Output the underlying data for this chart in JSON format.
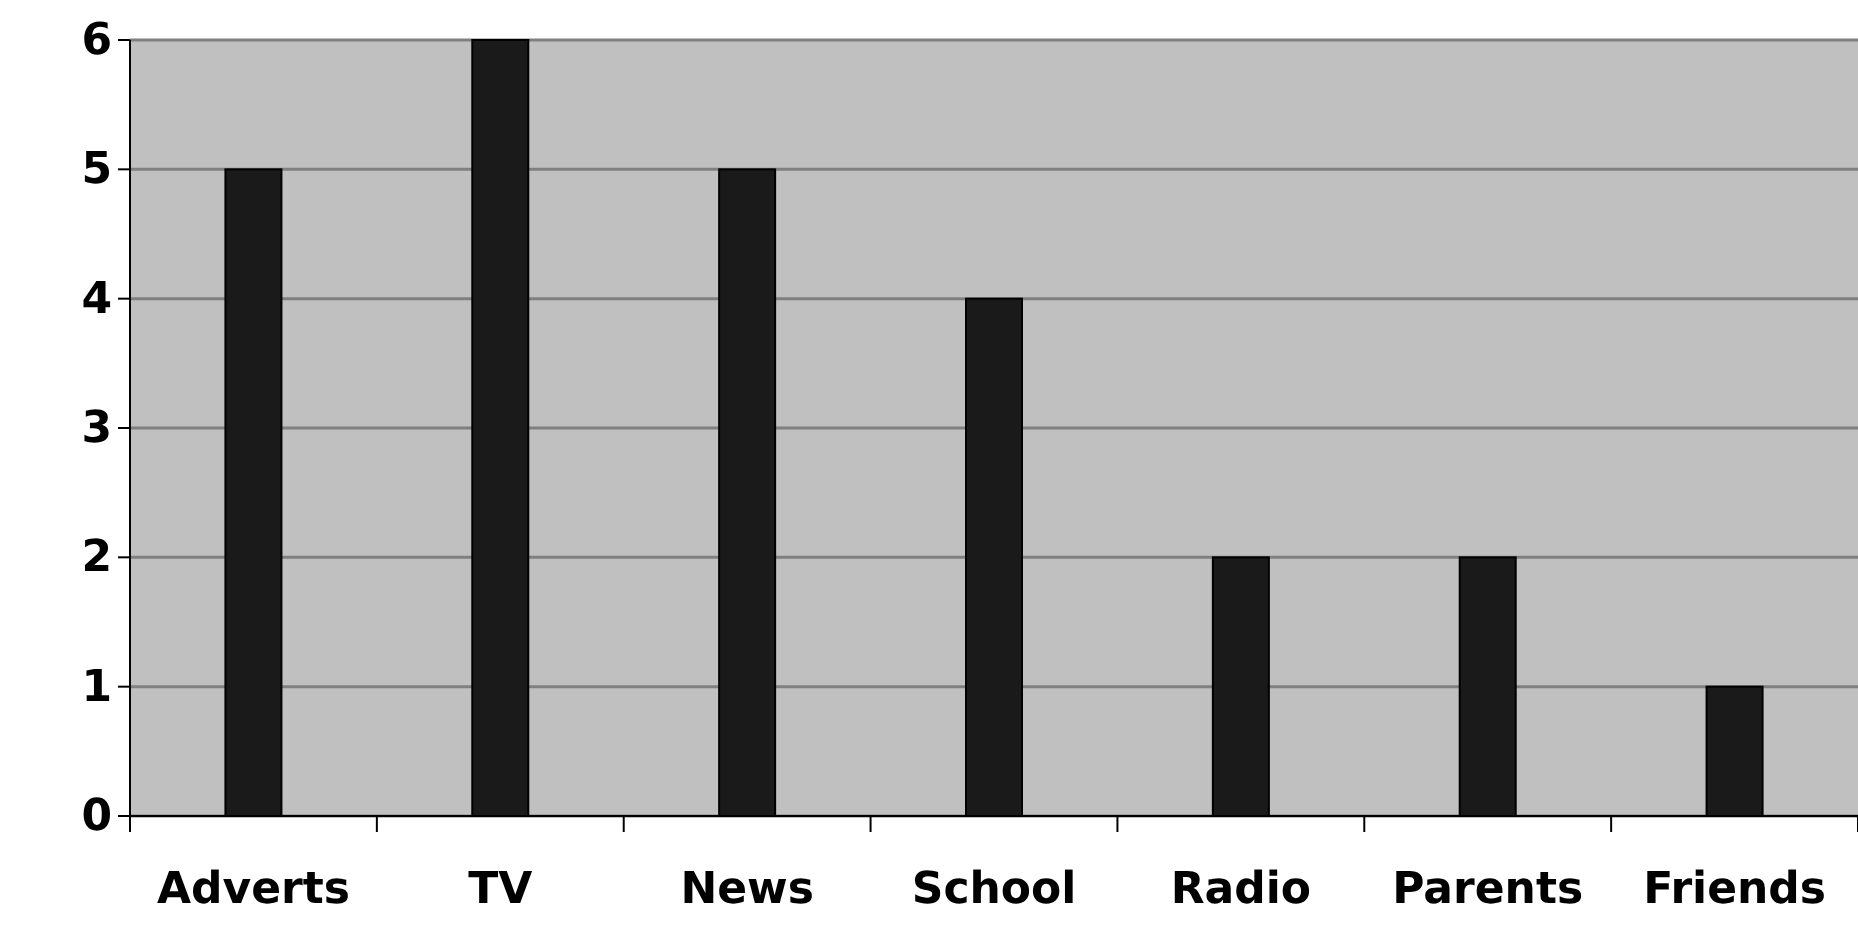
{
  "chart_data": {
    "type": "bar",
    "categories": [
      "Adverts",
      "TV",
      "News",
      "School",
      "Radio",
      "Parents",
      "Friends"
    ],
    "values": [
      5,
      6,
      5,
      4,
      2,
      2,
      1
    ],
    "color": "#1a1a1a",
    "ylim": [
      0,
      6
    ],
    "yticks": [
      0,
      1,
      2,
      3,
      4,
      5,
      6
    ],
    "grid": "y"
  }
}
